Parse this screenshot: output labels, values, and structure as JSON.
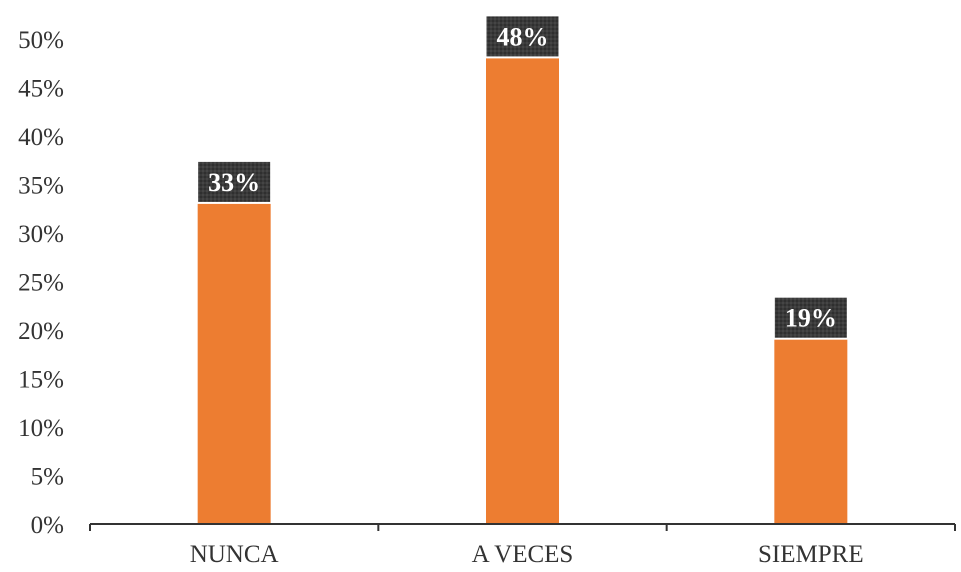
{
  "chart_data": {
    "type": "bar",
    "categories": [
      "NUNCA",
      "A VECES",
      "SIEMPRE"
    ],
    "values": [
      33,
      48,
      19
    ],
    "data_labels": [
      "33%",
      "48%",
      "19%"
    ],
    "y_ticks": [
      "0%",
      "5%",
      "10%",
      "15%",
      "20%",
      "25%",
      "30%",
      "35%",
      "40%",
      "45%",
      "50%"
    ],
    "ylim": [
      0,
      50
    ],
    "y_unit": "%",
    "grid": false,
    "legend": "none",
    "title": "",
    "xlabel": "",
    "ylabel": ""
  },
  "colors": {
    "bar": "#ED7D31",
    "data_label_bg": "#333333",
    "data_label_text": "#ffffff",
    "axis": "#333333",
    "text": "#333333"
  }
}
